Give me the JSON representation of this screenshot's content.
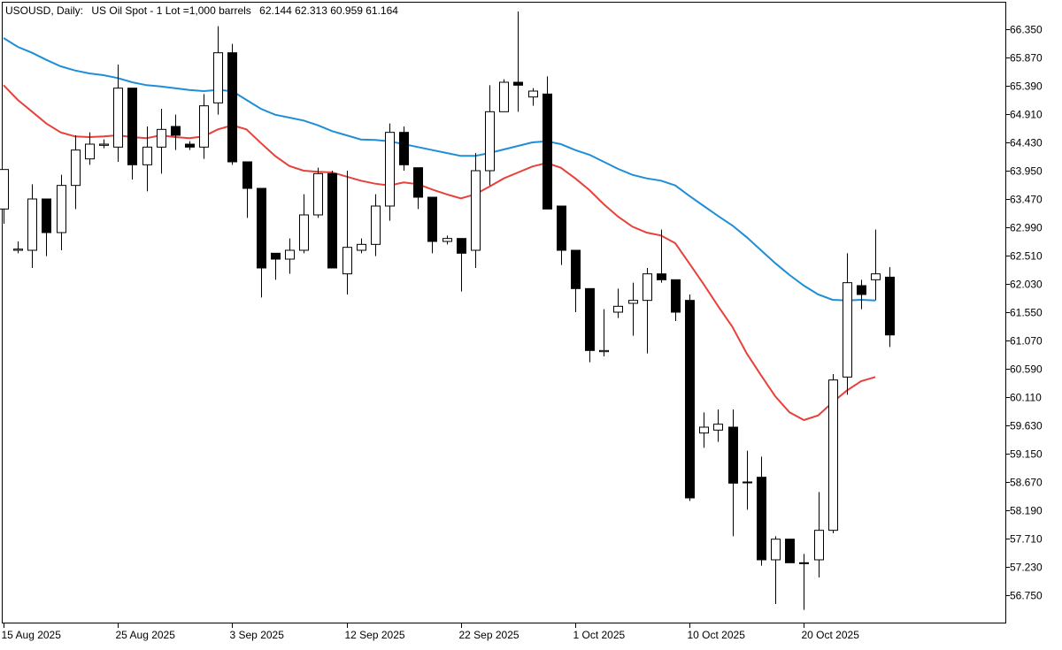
{
  "header": {
    "symbol": "USOUSD, Daily:",
    "description": "US Oil Spot - 1 Lot =1,000 barrels",
    "ohlc": "62.144 62.313 60.959 61.164"
  },
  "colors": {
    "background": "#ffffff",
    "frame": "#000000",
    "bull_body": "#ffffff",
    "bear_body": "#000000",
    "ma_fast": "#e8413c",
    "ma_slow": "#1e8fd6"
  },
  "chart_data": {
    "type": "candlestick",
    "title": "USOUSD, Daily:  US Oil Spot - 1 Lot =1,000 barrels",
    "grid": false,
    "ylim": [
      56.4,
      66.7
    ],
    "y_ticks": [
      "66.350",
      "65.870",
      "65.390",
      "64.910",
      "64.430",
      "63.950",
      "63.470",
      "62.990",
      "62.510",
      "62.030",
      "61.550",
      "61.070",
      "60.590",
      "60.110",
      "59.630",
      "59.150",
      "58.670",
      "58.190",
      "57.710",
      "57.230",
      "56.750"
    ],
    "x_ticks": [
      {
        "label": "15 Aug 2025",
        "index": 0
      },
      {
        "label": "25 Aug 2025",
        "index": 8
      },
      {
        "label": "3 Sep 2025",
        "index": 16
      },
      {
        "label": "12 Sep 2025",
        "index": 24
      },
      {
        "label": "22 Sep 2025",
        "index": 32
      },
      {
        "label": "1 Oct 2025",
        "index": 40
      },
      {
        "label": "10 Oct 2025",
        "index": 48
      },
      {
        "label": "20 Oct 2025",
        "index": 56
      }
    ],
    "candles": [
      {
        "o": 63.3,
        "h": 63.97,
        "l": 63.05,
        "c": 63.97
      },
      {
        "o": 62.6,
        "h": 62.75,
        "l": 62.55,
        "c": 62.62
      },
      {
        "o": 62.6,
        "h": 63.72,
        "l": 62.3,
        "c": 63.47
      },
      {
        "o": 63.47,
        "h": 63.47,
        "l": 62.5,
        "c": 62.9
      },
      {
        "o": 62.9,
        "h": 63.88,
        "l": 62.6,
        "c": 63.7
      },
      {
        "o": 63.7,
        "h": 64.55,
        "l": 63.3,
        "c": 64.3
      },
      {
        "o": 64.15,
        "h": 64.6,
        "l": 64.05,
        "c": 64.4
      },
      {
        "o": 64.38,
        "h": 64.48,
        "l": 64.33,
        "c": 64.4
      },
      {
        "o": 64.35,
        "h": 65.75,
        "l": 64.1,
        "c": 65.35
      },
      {
        "o": 65.35,
        "h": 65.35,
        "l": 63.8,
        "c": 64.05
      },
      {
        "o": 64.05,
        "h": 64.7,
        "l": 63.6,
        "c": 64.35
      },
      {
        "o": 64.35,
        "h": 65.0,
        "l": 63.9,
        "c": 64.65
      },
      {
        "o": 64.7,
        "h": 64.9,
        "l": 64.3,
        "c": 64.55
      },
      {
        "o": 64.4,
        "h": 64.45,
        "l": 64.3,
        "c": 64.35
      },
      {
        "o": 64.35,
        "h": 65.25,
        "l": 64.15,
        "c": 65.05
      },
      {
        "o": 65.1,
        "h": 66.4,
        "l": 64.9,
        "c": 65.95
      },
      {
        "o": 65.95,
        "h": 66.1,
        "l": 64.05,
        "c": 64.1
      },
      {
        "o": 64.1,
        "h": 64.1,
        "l": 63.15,
        "c": 63.65
      },
      {
        "o": 63.65,
        "h": 63.65,
        "l": 61.8,
        "c": 62.3
      },
      {
        "o": 62.55,
        "h": 62.55,
        "l": 62.1,
        "c": 62.45
      },
      {
        "o": 62.45,
        "h": 62.8,
        "l": 62.2,
        "c": 62.6
      },
      {
        "o": 62.6,
        "h": 63.55,
        "l": 62.55,
        "c": 63.2
      },
      {
        "o": 63.2,
        "h": 64.0,
        "l": 63.15,
        "c": 63.9
      },
      {
        "o": 63.9,
        "h": 63.95,
        "l": 62.3,
        "c": 62.3
      },
      {
        "o": 62.2,
        "h": 63.95,
        "l": 61.85,
        "c": 62.65
      },
      {
        "o": 62.6,
        "h": 62.8,
        "l": 62.55,
        "c": 62.7
      },
      {
        "o": 62.7,
        "h": 63.55,
        "l": 62.5,
        "c": 63.35
      },
      {
        "o": 63.35,
        "h": 64.75,
        "l": 63.1,
        "c": 64.6
      },
      {
        "o": 64.6,
        "h": 64.7,
        "l": 63.95,
        "c": 64.05
      },
      {
        "o": 64.0,
        "h": 64.0,
        "l": 63.3,
        "c": 63.5
      },
      {
        "o": 63.5,
        "h": 63.5,
        "l": 62.55,
        "c": 62.75
      },
      {
        "o": 62.75,
        "h": 62.85,
        "l": 62.7,
        "c": 62.8
      },
      {
        "o": 62.8,
        "h": 62.8,
        "l": 61.9,
        "c": 62.55
      },
      {
        "o": 62.6,
        "h": 64.25,
        "l": 62.3,
        "c": 63.95
      },
      {
        "o": 63.95,
        "h": 65.4,
        "l": 63.7,
        "c": 64.95
      },
      {
        "o": 64.95,
        "h": 65.5,
        "l": 64.95,
        "c": 65.45
      },
      {
        "o": 65.45,
        "h": 66.65,
        "l": 64.95,
        "c": 65.4
      },
      {
        "o": 65.2,
        "h": 65.35,
        "l": 65.05,
        "c": 65.3
      },
      {
        "o": 65.25,
        "h": 65.55,
        "l": 63.35,
        "c": 63.3
      },
      {
        "o": 63.35,
        "h": 63.35,
        "l": 62.35,
        "c": 62.6
      },
      {
        "o": 62.6,
        "h": 62.6,
        "l": 61.55,
        "c": 61.95
      },
      {
        "o": 61.95,
        "h": 61.95,
        "l": 60.7,
        "c": 60.9
      },
      {
        "o": 60.88,
        "h": 61.6,
        "l": 60.8,
        "c": 60.9
      },
      {
        "o": 61.55,
        "h": 61.95,
        "l": 61.45,
        "c": 61.65
      },
      {
        "o": 61.7,
        "h": 62.05,
        "l": 61.15,
        "c": 61.75
      },
      {
        "o": 61.75,
        "h": 62.3,
        "l": 60.85,
        "c": 62.2
      },
      {
        "o": 62.2,
        "h": 62.95,
        "l": 62.05,
        "c": 62.1
      },
      {
        "o": 62.1,
        "h": 62.1,
        "l": 61.4,
        "c": 61.55
      },
      {
        "o": 61.75,
        "h": 61.85,
        "l": 58.35,
        "c": 58.4
      },
      {
        "o": 59.5,
        "h": 59.85,
        "l": 59.25,
        "c": 59.6
      },
      {
        "o": 59.55,
        "h": 59.9,
        "l": 59.35,
        "c": 59.65
      },
      {
        "o": 59.6,
        "h": 59.9,
        "l": 57.75,
        "c": 58.65
      },
      {
        "o": 58.67,
        "h": 59.2,
        "l": 58.2,
        "c": 58.67
      },
      {
        "o": 58.75,
        "h": 59.1,
        "l": 57.25,
        "c": 57.35
      },
      {
        "o": 57.35,
        "h": 57.75,
        "l": 56.6,
        "c": 57.7
      },
      {
        "o": 57.7,
        "h": 57.7,
        "l": 57.3,
        "c": 57.3
      },
      {
        "o": 57.3,
        "h": 57.45,
        "l": 56.5,
        "c": 57.3
      },
      {
        "o": 57.35,
        "h": 58.5,
        "l": 57.05,
        "c": 57.85
      },
      {
        "o": 57.85,
        "h": 60.5,
        "l": 57.8,
        "c": 60.4
      },
      {
        "o": 60.45,
        "h": 62.55,
        "l": 60.15,
        "c": 62.05
      },
      {
        "o": 62.0,
        "h": 62.1,
        "l": 61.6,
        "c": 61.85
      },
      {
        "o": 62.1,
        "h": 62.95,
        "l": 61.75,
        "c": 62.2
      },
      {
        "o": 62.144,
        "h": 62.313,
        "l": 60.959,
        "c": 61.164
      }
    ],
    "series": [
      {
        "values": [
          65.4,
          65.15,
          64.95,
          64.75,
          64.6,
          64.53,
          64.52,
          64.53,
          64.55,
          64.52,
          64.5,
          64.55,
          64.52,
          64.5,
          64.53,
          64.65,
          64.72,
          64.65,
          64.42,
          64.2,
          64.03,
          63.95,
          63.93,
          63.92,
          63.85,
          63.78,
          63.73,
          63.7,
          63.75,
          63.72,
          63.63,
          63.55,
          63.48,
          63.55,
          63.68,
          63.82,
          63.92,
          64.02,
          64.08,
          64.0,
          63.82,
          63.62,
          63.38,
          63.17,
          63.0,
          62.9,
          62.85,
          62.72,
          62.37,
          62.02,
          61.65,
          61.3,
          60.85,
          60.48,
          60.12,
          59.85,
          59.72,
          59.8,
          60.02,
          60.22,
          60.38,
          60.45
        ]
      },
      {
        "values": [
          66.2,
          66.05,
          65.95,
          65.83,
          65.72,
          65.65,
          65.6,
          65.57,
          65.52,
          65.45,
          65.4,
          65.38,
          65.35,
          65.32,
          65.3,
          65.32,
          65.3,
          65.15,
          65.0,
          64.9,
          64.85,
          64.8,
          64.72,
          64.62,
          64.55,
          64.48,
          64.47,
          64.45,
          64.4,
          64.35,
          64.3,
          64.25,
          64.2,
          64.2,
          64.25,
          64.31,
          64.37,
          64.43,
          64.45,
          64.4,
          64.3,
          64.22,
          64.1,
          63.98,
          63.88,
          63.82,
          63.78,
          63.7,
          63.52,
          63.35,
          63.18,
          63.02,
          62.82,
          62.6,
          62.38,
          62.18,
          62.0,
          61.85,
          61.76,
          61.75,
          61.76,
          61.75
        ]
      }
    ]
  }
}
